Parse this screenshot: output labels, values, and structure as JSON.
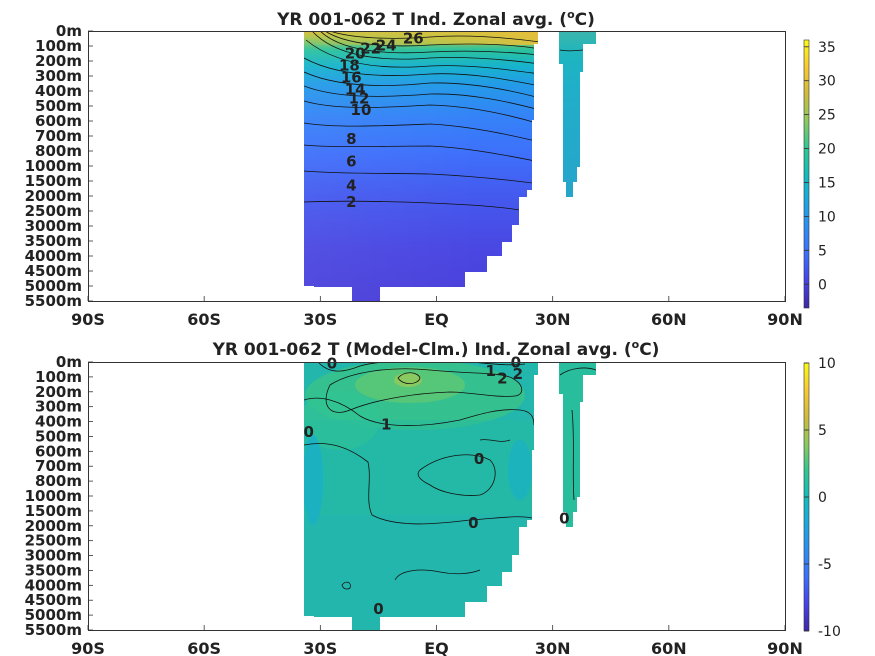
{
  "chart_data": [
    {
      "type": "heatmap",
      "title_main": "YR 001-062 T Ind. Zonal avg. (",
      "title_unit_sup": "o",
      "title_unit_end": "C)",
      "xlabel": "",
      "ylabel": "",
      "x_ticks": [
        "90S",
        "60S",
        "30S",
        "EQ",
        "30N",
        "60N",
        "90N"
      ],
      "y_ticks": [
        "0m",
        "100m",
        "200m",
        "300m",
        "400m",
        "500m",
        "600m",
        "700m",
        "800m",
        "1000m",
        "1500m",
        "2000m",
        "2500m",
        "3000m",
        "3500m",
        "4000m",
        "4500m",
        "5000m",
        "5500m"
      ],
      "xlim": [
        -90,
        90
      ],
      "colorbar": {
        "min": -3.5,
        "max": 36,
        "ticks": [
          0,
          5,
          10,
          15,
          20,
          25,
          30,
          35
        ]
      },
      "contour_labels": [
        {
          "text": "26",
          "lat": -6,
          "depth": 50
        },
        {
          "text": "24",
          "lat": -13,
          "depth": 95
        },
        {
          "text": "22",
          "lat": -17,
          "depth": 115
        },
        {
          "text": "20",
          "lat": -21,
          "depth": 150
        },
        {
          "text": "18",
          "lat": -22.5,
          "depth": 230
        },
        {
          "text": "16",
          "lat": -22,
          "depth": 310
        },
        {
          "text": "14",
          "lat": -21,
          "depth": 390
        },
        {
          "text": "12",
          "lat": -20,
          "depth": 450
        },
        {
          "text": "10",
          "lat": -19.5,
          "depth": 525
        },
        {
          "text": "8",
          "lat": -22,
          "depth": 720
        },
        {
          "text": "6",
          "lat": -22,
          "depth": 940
        },
        {
          "text": "4",
          "lat": -22,
          "depth": 1650
        },
        {
          "text": "2",
          "lat": -22,
          "depth": 2200
        }
      ]
    },
    {
      "type": "heatmap",
      "title_main": "YR 001-062 T (Model-Clm.) Ind. Zonal avg. (",
      "title_unit_sup": "o",
      "title_unit_end": "C)",
      "xlabel": "",
      "ylabel": "",
      "x_ticks": [
        "90S",
        "60S",
        "30S",
        "EQ",
        "30N",
        "60N",
        "90N"
      ],
      "y_ticks": [
        "0m",
        "100m",
        "200m",
        "300m",
        "400m",
        "500m",
        "600m",
        "700m",
        "800m",
        "1000m",
        "1500m",
        "2000m",
        "2500m",
        "3000m",
        "3500m",
        "4000m",
        "4500m",
        "5000m",
        "5500m"
      ],
      "xlim": [
        -90,
        90
      ],
      "colorbar": {
        "min": -10,
        "max": 10,
        "ticks": [
          -10,
          -5,
          0,
          5,
          10
        ]
      },
      "contour_labels": [
        {
          "text": "0",
          "lat": -27,
          "depth": 10
        },
        {
          "text": "0",
          "lat": 20.5,
          "depth": 5
        },
        {
          "text": "1",
          "lat": 14,
          "depth": 60
        },
        {
          "text": "2",
          "lat": 17,
          "depth": 110
        },
        {
          "text": "2",
          "lat": 21,
          "depth": 80
        },
        {
          "text": "1",
          "lat": -13,
          "depth": 420
        },
        {
          "text": "0",
          "lat": -33,
          "depth": 470
        },
        {
          "text": "0",
          "lat": 11,
          "depth": 650
        },
        {
          "text": "0",
          "lat": 9.5,
          "depth": 1900
        },
        {
          "text": "0",
          "lat": 33,
          "depth": 1750
        },
        {
          "text": "0",
          "lat": -15,
          "depth": 4800
        }
      ]
    }
  ]
}
